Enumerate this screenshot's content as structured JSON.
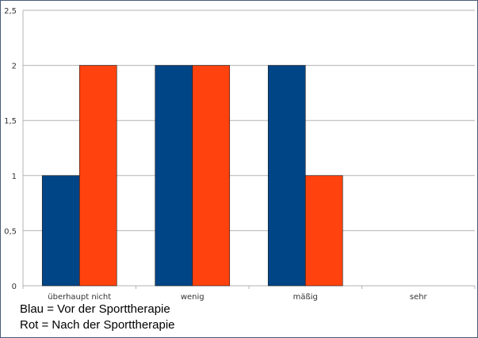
{
  "chart_data": {
    "type": "bar",
    "categories": [
      "überhaupt nicht",
      "wenig",
      "mäßig",
      "sehr"
    ],
    "series": [
      {
        "name": "Vor der Sporttherapie",
        "values": [
          1,
          2,
          2,
          0
        ],
        "color": "#004586"
      },
      {
        "name": "Nach der Sporttherapie",
        "values": [
          2,
          2,
          1,
          0
        ],
        "color": "#ff420e"
      }
    ],
    "ylim": [
      0,
      2.5
    ],
    "yticks": [
      0,
      0.5,
      1,
      1.5,
      2,
      2.5
    ],
    "ytick_labels": [
      "0",
      "0,5",
      "1",
      "1,5",
      "2",
      "2,5"
    ],
    "grid": true,
    "title": "",
    "xlabel": "",
    "ylabel": ""
  },
  "legend_notes": {
    "line1": "Blau = Vor der Sporttherapie",
    "line2": "Rot = Nach der Sporttherapie"
  }
}
